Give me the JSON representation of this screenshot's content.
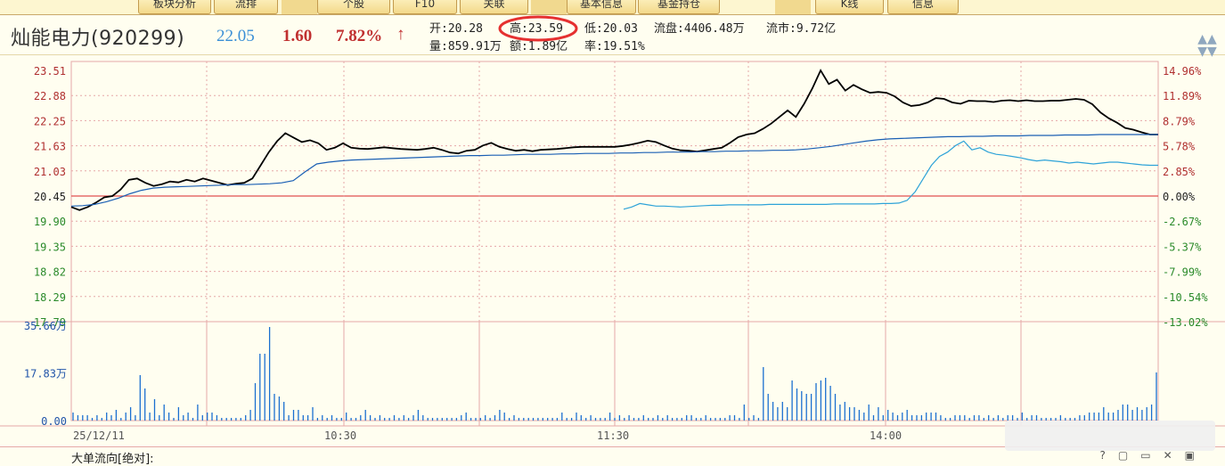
{
  "toolbar": {
    "buttons": [
      "板块分析",
      "流排",
      "个股",
      "F10",
      "关联",
      "基本信息",
      "基金持仓",
      "K线",
      "信息"
    ]
  },
  "stock": {
    "name": "灿能电力(920299)",
    "price": "22.05",
    "change": "1.60",
    "change_pct": "7.82%",
    "arrow": "↑",
    "colors": {
      "price": "#3a8fd6",
      "up": "#c03030"
    }
  },
  "quote": {
    "open": "开:20.28",
    "high": "高:23.59",
    "low": "低:20.03",
    "float_shares": "流盘:4406.48万",
    "float_cap": "流市:9.72亿",
    "volume": "量:859.91万",
    "amount": "额:1.89亿",
    "turnover": "率:19.51%"
  },
  "chart_data": {
    "type": "line",
    "title": "",
    "date": "25/12/11",
    "x_ticks": [
      "25/12/11",
      "10:30",
      "11:30",
      "14:00"
    ],
    "y_left_ticks": [
      "23.51",
      "22.88",
      "22.25",
      "21.63",
      "21.03",
      "20.45",
      "19.90",
      "19.35",
      "18.82",
      "18.29",
      "17.79"
    ],
    "y_right_ticks": [
      "14.96%",
      "11.89%",
      "8.79%",
      "5.78%",
      "2.85%",
      "0.00%",
      "-2.67%",
      "-5.37%",
      "-7.99%",
      "-10.54%",
      "-13.02%"
    ],
    "prev_close": 20.45,
    "ylim": [
      17.79,
      23.51
    ],
    "series": [
      {
        "color": "#000000",
        "values": [
          20.4,
          20.33,
          20.4,
          20.5,
          20.62,
          20.65,
          20.8,
          21.02,
          21.05,
          20.95,
          20.88,
          20.92,
          20.98,
          20.96,
          21.02,
          20.98,
          21.05,
          21.0,
          20.95,
          20.9,
          20.93,
          20.95,
          21.05,
          21.35,
          21.65,
          21.9,
          22.08,
          21.98,
          21.88,
          21.92,
          21.85,
          21.7,
          21.75,
          21.85,
          21.75,
          21.73,
          21.72,
          21.74,
          21.76,
          21.74,
          21.72,
          21.71,
          21.7,
          21.72,
          21.75,
          21.7,
          21.64,
          21.62,
          21.68,
          21.7,
          21.8,
          21.86,
          21.77,
          21.72,
          21.68,
          21.7,
          21.67,
          21.7,
          21.71,
          21.72,
          21.74,
          21.76,
          21.77,
          21.77,
          21.77,
          21.77,
          21.77,
          21.79,
          21.82,
          21.86,
          21.91,
          21.88,
          21.8,
          21.73,
          21.69,
          21.68,
          21.66,
          21.69,
          21.72,
          21.75,
          21.86,
          21.99,
          22.05,
          22.08,
          22.18,
          22.3,
          22.45,
          22.6,
          22.45,
          22.75,
          23.1,
          23.51,
          23.2,
          23.3,
          23.05,
          23.18,
          23.08,
          23.0,
          23.02,
          23.0,
          22.92,
          22.78,
          22.7,
          22.72,
          22.78,
          22.88,
          22.86,
          22.78,
          22.75,
          22.82,
          22.81,
          22.81,
          22.79,
          22.82,
          22.83,
          22.81,
          22.83,
          22.81,
          22.81,
          22.82,
          22.82,
          22.84,
          22.86,
          22.84,
          22.74,
          22.55,
          22.42,
          22.32,
          22.2,
          22.16,
          22.1,
          22.05,
          22.05
        ]
      },
      {
        "color": "#1a5fb4",
        "values": [
          20.42,
          20.43,
          20.46,
          20.52,
          20.6,
          20.7,
          20.78,
          20.83,
          20.85,
          20.86,
          20.87,
          20.88,
          20.89,
          20.9,
          20.91,
          20.91,
          20.92,
          20.93,
          20.95,
          21.0,
          21.2,
          21.38,
          21.42,
          21.45,
          21.47,
          21.48,
          21.49,
          21.5,
          21.51,
          21.52,
          21.53,
          21.54,
          21.55,
          21.56,
          21.57,
          21.57,
          21.58,
          21.58,
          21.59,
          21.6,
          21.6,
          21.6,
          21.61,
          21.61,
          21.62,
          21.62,
          21.62,
          21.63,
          21.63,
          21.64,
          21.64,
          21.65,
          21.65,
          21.65,
          21.66,
          21.66,
          21.67,
          21.67,
          21.68,
          21.68,
          21.69,
          21.69,
          21.7,
          21.72,
          21.75,
          21.78,
          21.82,
          21.86,
          21.9,
          21.93,
          21.95,
          21.96,
          21.97,
          21.98,
          21.99,
          22.0,
          22.0,
          22.01,
          22.01,
          22.02,
          22.02,
          22.02,
          22.03,
          22.03,
          22.03,
          22.04,
          22.04,
          22.04,
          22.05,
          22.05,
          22.05,
          22.05,
          22.05,
          22.05
        ]
      },
      {
        "color": "#2ea3d8",
        "values": [
          20.35,
          20.4,
          20.48,
          20.45,
          20.42,
          20.42,
          20.41,
          20.4,
          20.41,
          20.42,
          20.43,
          20.44,
          20.44,
          20.45,
          20.45,
          20.45,
          20.45,
          20.45,
          20.46,
          20.46,
          20.46,
          20.46,
          20.46,
          20.46,
          20.46,
          20.46,
          20.47,
          20.47,
          20.47,
          20.47,
          20.47,
          20.47,
          20.48,
          20.48,
          20.49,
          20.55,
          20.75,
          21.05,
          21.35,
          21.55,
          21.65,
          21.8,
          21.9,
          21.7,
          21.75,
          21.65,
          21.6,
          21.58,
          21.55,
          21.52,
          21.48,
          21.45,
          21.47,
          21.45,
          21.43,
          21.4,
          21.42,
          21.4,
          21.38,
          21.4,
          21.42,
          21.42,
          21.4,
          21.38,
          21.36,
          21.35,
          21.35
        ]
      }
    ],
    "volume": {
      "y_ticks": [
        "35.66万",
        "17.83万",
        "0.00"
      ],
      "ylim": [
        0,
        35.66
      ],
      "values": [
        3,
        2,
        2,
        2,
        1,
        2,
        1,
        3,
        2,
        4,
        1,
        3,
        5,
        2,
        17,
        12,
        3,
        8,
        2,
        6,
        3,
        1,
        5,
        2,
        3,
        1,
        6,
        2,
        3,
        3,
        2,
        1,
        1,
        1,
        1,
        1,
        2,
        4,
        14,
        25,
        25,
        35,
        10,
        9,
        7,
        2,
        4,
        4,
        2,
        2,
        5,
        1,
        2,
        1,
        2,
        1,
        1,
        3,
        1,
        1,
        2,
        4,
        2,
        1,
        2,
        1,
        1,
        2,
        1,
        2,
        1,
        2,
        4,
        2,
        1,
        1,
        1,
        1,
        1,
        1,
        1,
        2,
        3,
        1,
        1,
        1,
        2,
        1,
        2,
        4,
        3,
        1,
        2,
        1,
        1,
        1,
        1,
        1,
        1,
        1,
        1,
        1,
        3,
        1,
        1,
        3,
        2,
        1,
        2,
        1,
        1,
        1,
        3,
        1,
        2,
        1,
        2,
        1,
        1,
        2,
        1,
        1,
        2,
        1,
        2,
        1,
        1,
        1,
        2,
        2,
        1,
        1,
        2,
        1,
        1,
        1,
        1,
        2,
        2,
        1,
        6,
        1,
        2,
        1,
        20,
        10,
        7,
        5,
        7,
        5,
        15,
        12,
        11,
        10,
        10,
        14,
        15,
        16,
        13,
        10,
        6,
        7,
        5,
        5,
        4,
        3,
        6,
        2,
        5,
        2,
        4,
        3,
        2,
        3,
        4,
        2,
        2,
        2,
        3,
        3,
        3,
        2,
        1,
        1,
        2,
        2,
        2,
        1,
        2,
        2,
        1,
        2,
        1,
        2,
        1,
        2,
        2,
        1,
        3,
        1,
        2,
        2,
        1,
        1,
        1,
        1,
        2,
        1,
        1,
        1,
        2,
        2,
        3,
        3,
        3,
        5,
        3,
        3,
        4,
        6,
        6,
        4,
        5,
        4,
        5,
        6,
        18
      ]
    }
  },
  "bottom": {
    "flow_label": "大单流向[绝对]:"
  }
}
